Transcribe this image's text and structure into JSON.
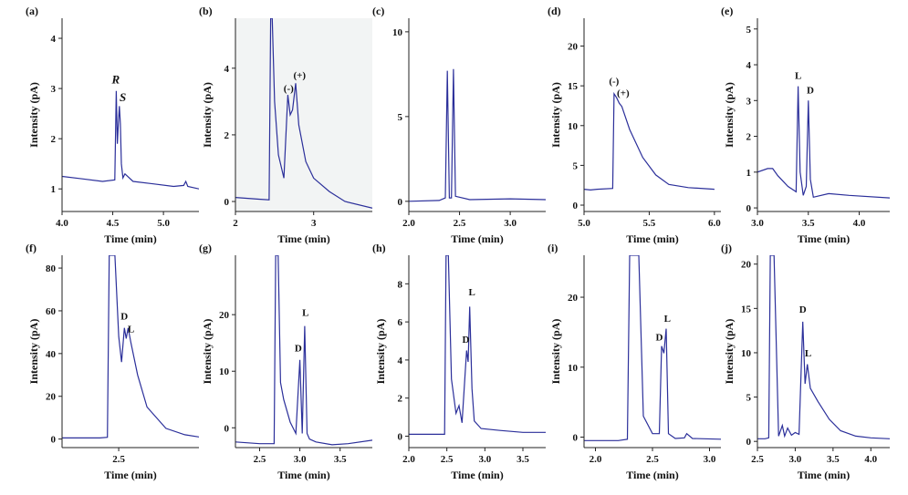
{
  "figure": {
    "description_ids": "10 chromatogram panels"
  },
  "chart_data": [
    {
      "id": "a",
      "type": "line",
      "panel_label": "(a)",
      "xlabel": "Time (min)",
      "ylabel": "Intensity (pA)",
      "xlim": [
        4.0,
        5.35
      ],
      "ylim": [
        0.55,
        4.4
      ],
      "xticks": [
        {
          "v": 4.0,
          "t": "4.0"
        },
        {
          "v": 4.5,
          "t": "4.5"
        },
        {
          "v": 5.0,
          "t": "5.0"
        }
      ],
      "yticks": [
        {
          "v": 1,
          "t": "1"
        },
        {
          "v": 2,
          "t": "2"
        },
        {
          "v": 3,
          "t": "3"
        },
        {
          "v": 4,
          "t": "4"
        }
      ],
      "series": [
        {
          "name": "chromatogram",
          "x": [
            4.0,
            4.2,
            4.4,
            4.52,
            4.535,
            4.545,
            4.555,
            4.565,
            4.575,
            4.585,
            4.6,
            4.62,
            4.7,
            4.9,
            5.1,
            5.2,
            5.22,
            5.24,
            5.35
          ],
          "y": [
            1.25,
            1.2,
            1.15,
            1.18,
            2.95,
            1.9,
            2.3,
            2.65,
            2.3,
            1.5,
            1.22,
            1.3,
            1.15,
            1.1,
            1.05,
            1.07,
            1.15,
            1.05,
            1.0
          ]
        }
      ],
      "annotations": [
        {
          "text": "R",
          "x": 4.53,
          "y": 3.1,
          "italic": true
        },
        {
          "text": "S",
          "x": 4.6,
          "y": 2.75,
          "italic": true
        }
      ]
    },
    {
      "id": "b",
      "type": "line",
      "panel_label": "(b)",
      "xlabel": "Time (min)",
      "ylabel": "Intensity (pA)",
      "xlim": [
        2.0,
        3.75
      ],
      "ylim": [
        -0.3,
        5.5
      ],
      "xticks": [
        {
          "v": 2,
          "t": "2"
        },
        {
          "v": 3,
          "t": "3"
        }
      ],
      "yticks": [
        {
          "v": 0,
          "t": "0"
        },
        {
          "v": 2,
          "t": "2"
        },
        {
          "v": 4,
          "t": "4"
        }
      ],
      "series": [
        {
          "name": "chromatogram",
          "x": [
            2.0,
            2.3,
            2.43,
            2.45,
            2.47,
            2.5,
            2.55,
            2.62,
            2.67,
            2.7,
            2.73,
            2.77,
            2.81,
            2.9,
            3.0,
            3.2,
            3.4,
            3.75
          ],
          "y": [
            0.12,
            0.07,
            0.05,
            5.5,
            5.5,
            3.0,
            1.4,
            0.7,
            3.2,
            2.6,
            2.75,
            3.55,
            2.3,
            1.2,
            0.7,
            0.3,
            0.0,
            -0.2
          ]
        }
      ],
      "annotations": [
        {
          "text": "(-)",
          "x": 2.68,
          "y": 3.3
        },
        {
          "text": "(+)",
          "x": 2.82,
          "y": 3.7
        }
      ]
    },
    {
      "id": "c",
      "type": "line",
      "panel_label": "(c)",
      "xlabel": "Time (min)",
      "ylabel": "",
      "xlim": [
        2.0,
        3.35
      ],
      "ylim": [
        -0.6,
        10.8
      ],
      "xticks": [
        {
          "v": 2.0,
          "t": "2.0"
        },
        {
          "v": 2.5,
          "t": "2.5"
        },
        {
          "v": 3.0,
          "t": "3.0"
        }
      ],
      "yticks": [
        {
          "v": 0,
          "t": "0"
        },
        {
          "v": 5,
          "t": "5"
        },
        {
          "v": 10,
          "t": "10"
        }
      ],
      "series": [
        {
          "name": "chromatogram",
          "x": [
            2.0,
            2.3,
            2.36,
            2.38,
            2.4,
            2.42,
            2.44,
            2.46,
            2.6,
            3.0,
            3.35
          ],
          "y": [
            0.0,
            0.05,
            0.2,
            7.7,
            0.2,
            0.2,
            7.8,
            0.3,
            0.1,
            0.15,
            0.1
          ]
        }
      ],
      "annotations": []
    },
    {
      "id": "d",
      "type": "line",
      "panel_label": "(d)",
      "xlabel": "Time (min)",
      "ylabel": "Intensity (pA)",
      "xlim": [
        5.0,
        6.05
      ],
      "ylim": [
        -0.8,
        23.5
      ],
      "xticks": [
        {
          "v": 5.0,
          "t": "5.0"
        },
        {
          "v": 5.5,
          "t": "5.5"
        },
        {
          "v": 6.0,
          "t": "6.0"
        }
      ],
      "yticks": [
        {
          "v": 0,
          "t": "0"
        },
        {
          "v": 5,
          "t": "5"
        },
        {
          "v": 10,
          "t": "10"
        },
        {
          "v": 15,
          "t": "15"
        },
        {
          "v": 20,
          "t": "20"
        }
      ],
      "series": [
        {
          "name": "chromatogram",
          "x": [
            5.0,
            5.05,
            5.1,
            5.22,
            5.23,
            5.25,
            5.27,
            5.29,
            5.35,
            5.45,
            5.55,
            5.65,
            5.8,
            6.0
          ],
          "y": [
            2.0,
            1.9,
            2.0,
            2.1,
            14.0,
            13.5,
            12.8,
            12.4,
            9.5,
            6.0,
            3.8,
            2.6,
            2.2,
            2.0
          ]
        }
      ],
      "annotations": [
        {
          "text": "(-)",
          "x": 5.23,
          "y": 15.2
        },
        {
          "text": "(+)",
          "x": 5.3,
          "y": 13.7
        }
      ]
    },
    {
      "id": "e",
      "type": "line",
      "panel_label": "(e)",
      "xlabel": "Time (min)",
      "ylabel": "Intensity (pA)",
      "xlim": [
        3.0,
        4.3
      ],
      "ylim": [
        -0.1,
        5.3
      ],
      "xticks": [
        {
          "v": 3.0,
          "t": "3.0"
        },
        {
          "v": 3.5,
          "t": "3.5"
        },
        {
          "v": 4.0,
          "t": "4.0"
        }
      ],
      "yticks": [
        {
          "v": 0,
          "t": "0"
        },
        {
          "v": 1,
          "t": "1"
        },
        {
          "v": 2,
          "t": "2"
        },
        {
          "v": 3,
          "t": "3"
        },
        {
          "v": 4,
          "t": "4"
        },
        {
          "v": 5,
          "t": "5"
        }
      ],
      "series": [
        {
          "name": "chromatogram",
          "x": [
            3.0,
            3.1,
            3.15,
            3.2,
            3.3,
            3.38,
            3.4,
            3.42,
            3.45,
            3.48,
            3.5,
            3.52,
            3.55,
            3.7,
            3.9,
            4.3
          ],
          "y": [
            1.0,
            1.1,
            1.1,
            0.9,
            0.6,
            0.45,
            3.4,
            1.0,
            0.35,
            0.6,
            3.0,
            0.8,
            0.3,
            0.4,
            0.35,
            0.28
          ]
        }
      ],
      "annotations": [
        {
          "text": "L",
          "x": 3.4,
          "y": 3.6
        },
        {
          "text": "D",
          "x": 3.52,
          "y": 3.2
        }
      ]
    },
    {
      "id": "f",
      "type": "line",
      "panel_label": "(f)",
      "xlabel": "Time (min)",
      "ylabel": "Intensity (pA)",
      "xlim": [
        1.9,
        3.35
      ],
      "ylim": [
        -4,
        86
      ],
      "xticks": [
        {
          "v": 2.5,
          "t": "2.5"
        }
      ],
      "yticks": [
        {
          "v": 0,
          "t": "0"
        },
        {
          "v": 20,
          "t": "20"
        },
        {
          "v": 40,
          "t": "40"
        },
        {
          "v": 60,
          "t": "60"
        },
        {
          "v": 80,
          "t": "80"
        }
      ],
      "series": [
        {
          "name": "chromatogram",
          "x": [
            1.9,
            2.3,
            2.38,
            2.4,
            2.46,
            2.5,
            2.53,
            2.56,
            2.58,
            2.6,
            2.63,
            2.7,
            2.8,
            3.0,
            3.2,
            3.35
          ],
          "y": [
            0.5,
            0.5,
            0.8,
            86,
            86,
            48,
            36,
            52,
            47,
            52,
            45,
            30,
            15,
            5,
            2,
            1
          ]
        }
      ],
      "annotations": [
        {
          "text": "D",
          "x": 2.56,
          "y": 56
        },
        {
          "text": "L",
          "x": 2.63,
          "y": 50
        }
      ]
    },
    {
      "id": "g",
      "type": "line",
      "panel_label": "(g)",
      "xlabel": "Time (min)",
      "ylabel": "Intensity (pA)",
      "xlim": [
        2.2,
        3.9
      ],
      "ylim": [
        -3.5,
        30.5
      ],
      "xticks": [
        {
          "v": 2.5,
          "t": "2.5"
        },
        {
          "v": 3.0,
          "t": "3.0"
        },
        {
          "v": 3.5,
          "t": "3.5"
        }
      ],
      "yticks": [
        {
          "v": 0,
          "t": "0"
        },
        {
          "v": 10,
          "t": "10"
        },
        {
          "v": 20,
          "t": "20"
        }
      ],
      "series": [
        {
          "name": "chromatogram",
          "x": [
            2.2,
            2.5,
            2.68,
            2.7,
            2.73,
            2.76,
            2.8,
            2.88,
            2.95,
            3.0,
            3.03,
            3.06,
            3.09,
            3.12,
            3.2,
            3.4,
            3.6,
            3.9
          ],
          "y": [
            -2.5,
            -2.8,
            -2.8,
            30.5,
            30.5,
            8,
            5,
            1,
            -1,
            12,
            -1,
            18,
            -1,
            -2,
            -2.5,
            -3,
            -2.8,
            -2.2
          ]
        }
      ],
      "annotations": [
        {
          "text": "D",
          "x": 2.98,
          "y": 13.5
        },
        {
          "text": "L",
          "x": 3.07,
          "y": 19.8
        }
      ]
    },
    {
      "id": "h",
      "type": "line",
      "panel_label": "(h)",
      "xlabel": "Time (min)",
      "ylabel": "Intensity (pA)",
      "xlim": [
        2.0,
        3.8
      ],
      "ylim": [
        -0.6,
        9.5
      ],
      "xticks": [
        {
          "v": 2.0,
          "t": "2.0"
        },
        {
          "v": 2.5,
          "t": "2.5"
        },
        {
          "v": 3.0,
          "t": "3.0"
        },
        {
          "v": 3.5,
          "t": "3.5"
        }
      ],
      "yticks": [
        {
          "v": 0,
          "t": "0"
        },
        {
          "v": 2,
          "t": "2"
        },
        {
          "v": 4,
          "t": "4"
        },
        {
          "v": 6,
          "t": "6"
        },
        {
          "v": 8,
          "t": "8"
        }
      ],
      "series": [
        {
          "name": "chromatogram",
          "x": [
            2.0,
            2.4,
            2.47,
            2.49,
            2.52,
            2.56,
            2.62,
            2.66,
            2.7,
            2.76,
            2.78,
            2.8,
            2.83,
            2.86,
            2.95,
            3.2,
            3.5,
            3.8
          ],
          "y": [
            0.1,
            0.1,
            0.1,
            9.5,
            9.5,
            3.0,
            1.2,
            1.6,
            0.7,
            4.5,
            3.9,
            6.8,
            2.5,
            0.8,
            0.4,
            0.3,
            0.2,
            0.2
          ]
        }
      ],
      "annotations": [
        {
          "text": "D",
          "x": 2.75,
          "y": 4.9
        },
        {
          "text": "L",
          "x": 2.83,
          "y": 7.4
        }
      ]
    },
    {
      "id": "i",
      "type": "line",
      "panel_label": "(i)",
      "xlabel": "Time (min)",
      "ylabel": "Intensity (pA)",
      "xlim": [
        1.9,
        3.1
      ],
      "ylim": [
        -1.5,
        26
      ],
      "xticks": [
        {
          "v": 2.0,
          "t": "2.0"
        },
        {
          "v": 2.5,
          "t": "2.5"
        },
        {
          "v": 3.0,
          "t": "3.0"
        }
      ],
      "yticks": [
        {
          "v": 0,
          "t": "0"
        },
        {
          "v": 10,
          "t": "10"
        },
        {
          "v": 20,
          "t": "20"
        }
      ],
      "series": [
        {
          "name": "chromatogram",
          "x": [
            1.9,
            2.2,
            2.28,
            2.3,
            2.38,
            2.42,
            2.5,
            2.56,
            2.58,
            2.6,
            2.62,
            2.64,
            2.7,
            2.78,
            2.8,
            2.85,
            3.1
          ],
          "y": [
            -0.5,
            -0.5,
            -0.3,
            26,
            26,
            3,
            0.5,
            0.5,
            13,
            12,
            15.5,
            0.5,
            -0.2,
            -0.1,
            0.5,
            -0.2,
            -0.3
          ]
        }
      ],
      "annotations": [
        {
          "text": "D",
          "x": 2.56,
          "y": 13.8
        },
        {
          "text": "L",
          "x": 2.63,
          "y": 16.5
        }
      ]
    },
    {
      "id": "j",
      "type": "line",
      "panel_label": "(j)",
      "xlabel": "Time (min)",
      "ylabel": "Intensity (pA)",
      "xlim": [
        2.5,
        4.25
      ],
      "ylim": [
        -0.7,
        21
      ],
      "xticks": [
        {
          "v": 2.5,
          "t": "2.5"
        },
        {
          "v": 3.0,
          "t": "3.0"
        },
        {
          "v": 3.5,
          "t": "3.5"
        },
        {
          "v": 4.0,
          "t": "4.0"
        }
      ],
      "yticks": [
        {
          "v": 0,
          "t": "0"
        },
        {
          "v": 5,
          "t": "5"
        },
        {
          "v": 10,
          "t": "10"
        },
        {
          "v": 15,
          "t": "15"
        },
        {
          "v": 20,
          "t": "20"
        }
      ],
      "series": [
        {
          "name": "chromatogram",
          "x": [
            2.5,
            2.6,
            2.65,
            2.67,
            2.72,
            2.78,
            2.83,
            2.86,
            2.9,
            2.95,
            3.0,
            3.05,
            3.1,
            3.13,
            3.16,
            3.2,
            3.3,
            3.45,
            3.6,
            3.8,
            4.0,
            4.25
          ],
          "y": [
            0.3,
            0.3,
            0.4,
            21,
            21,
            0.6,
            1.8,
            0.6,
            1.5,
            0.7,
            1.0,
            0.8,
            13.5,
            6.5,
            8.7,
            6.0,
            4.5,
            2.5,
            1.2,
            0.6,
            0.4,
            0.3
          ]
        }
      ],
      "annotations": [
        {
          "text": "D",
          "x": 3.1,
          "y": 14.5
        },
        {
          "text": "L",
          "x": 3.17,
          "y": 9.6
        }
      ]
    }
  ]
}
